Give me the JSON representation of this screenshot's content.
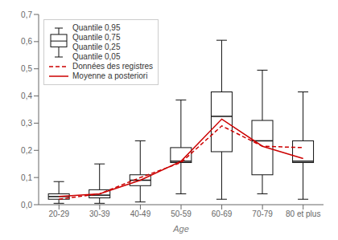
{
  "chart_data": {
    "type": "box",
    "xlabel": "Age",
    "categories": [
      "20-29",
      "30-39",
      "40-49",
      "50-59",
      "60-69",
      "70-79",
      "80 et plus"
    ],
    "boxes": {
      "color": "#111111",
      "q95": {
        "name": "Quantile 0,95",
        "values": [
          0.085,
          0.15,
          0.235,
          0.385,
          0.605,
          0.495,
          0.415
        ]
      },
      "q75": {
        "name": "Quantile 0,75",
        "values": [
          0.04,
          0.055,
          0.11,
          0.21,
          0.415,
          0.31,
          0.235
        ]
      },
      "median": {
        "values": [
          0.03,
          0.035,
          0.09,
          0.16,
          0.325,
          0.235,
          0.16
        ]
      },
      "q25": {
        "name": "Quantile 0,25",
        "values": [
          0.02,
          0.025,
          0.07,
          0.155,
          0.195,
          0.11,
          0.155
        ]
      },
      "q05": {
        "name": "Quantile 0,05",
        "values": [
          0.005,
          0.005,
          0.01,
          0.04,
          0.02,
          0.04,
          0.02
        ]
      }
    },
    "series": [
      {
        "name": "Données des registres",
        "type": "line",
        "color": "#cc0000",
        "line_style": "dashed",
        "values": [
          0.02,
          0.04,
          0.1,
          0.155,
          0.29,
          0.215,
          0.21
        ]
      },
      {
        "name": "Moyenne a posteriori",
        "type": "line",
        "color": "#cc0000",
        "line_style": "solid",
        "values": [
          0.03,
          0.04,
          0.09,
          0.16,
          0.315,
          0.215,
          0.17
        ]
      }
    ],
    "ylim": [
      0.0,
      0.7
    ],
    "yticks": [
      {
        "value": 0.0,
        "label": "0,0"
      },
      {
        "value": 0.1,
        "label": "0,1"
      },
      {
        "value": 0.2,
        "label": "0,2"
      },
      {
        "value": 0.3,
        "label": "0,3"
      },
      {
        "value": 0.4,
        "label": "0,4"
      },
      {
        "value": 0.5,
        "label": "0,5"
      },
      {
        "value": 0.6,
        "label": "0,6"
      },
      {
        "value": 0.7,
        "label": "0,7"
      }
    ],
    "legend": "upper left"
  }
}
